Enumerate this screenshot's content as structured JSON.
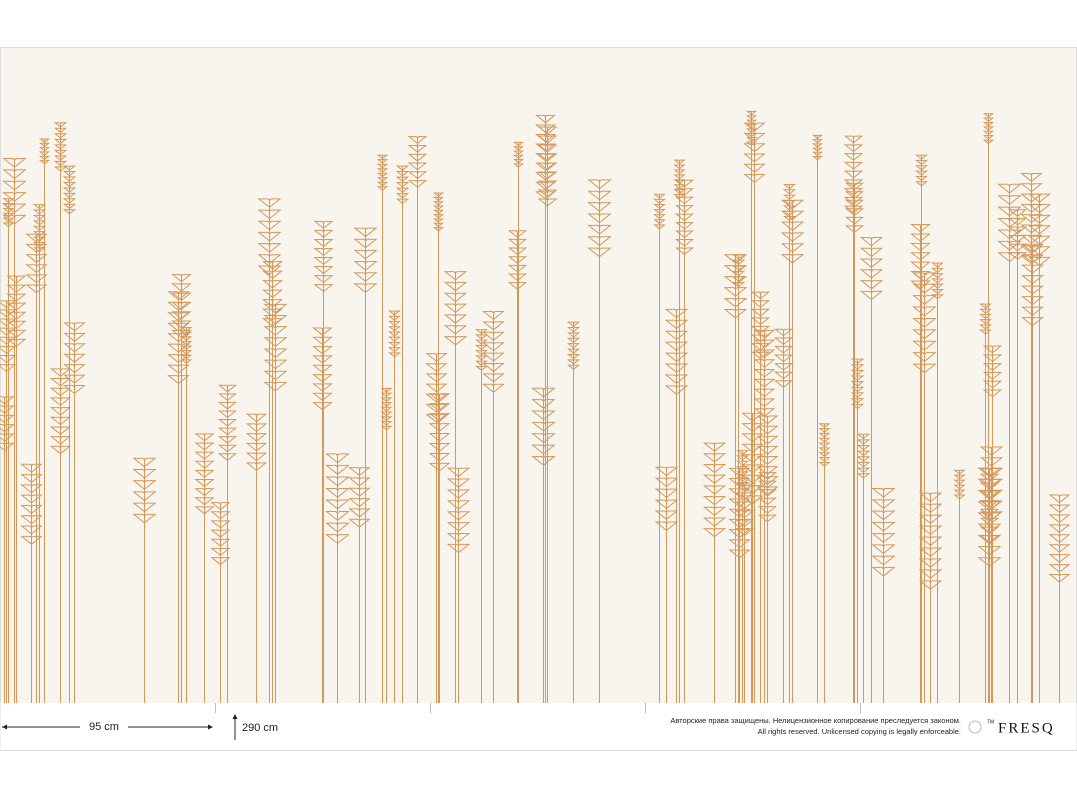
{
  "footer": {
    "width": "95 cm",
    "height": "290 cm",
    "copyright_ru": "Авторские права защищены. Нелицензионное копирование преследуется законом.",
    "copyright_en": "All rights reserved. Unlicensed copying is legally enforceable.",
    "trademark": "TM",
    "brand": "FRESQ"
  }
}
